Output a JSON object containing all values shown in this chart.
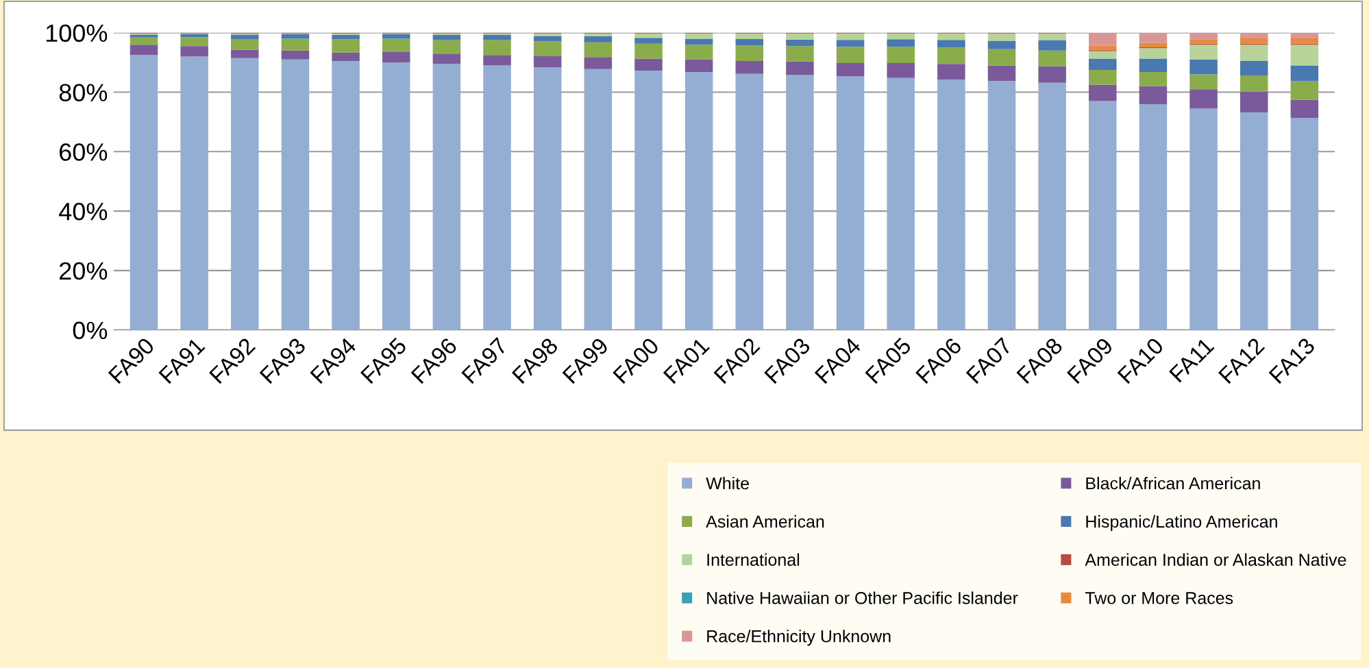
{
  "chart_data": {
    "type": "bar",
    "stacked": true,
    "categories": [
      "FA90",
      "FA91",
      "FA92",
      "FA93",
      "FA94",
      "FA95",
      "FA96",
      "FA97",
      "FA98",
      "FA99",
      "FA00",
      "FA01",
      "FA02",
      "FA03",
      "FA04",
      "FA05",
      "FA06",
      "FA07",
      "FA08",
      "FA09",
      "FA10",
      "FA11",
      "FA12",
      "FA13"
    ],
    "series": [
      {
        "name": "White",
        "color": "#94aed3",
        "values": [
          92.5,
          92,
          91.5,
          91,
          90.5,
          90,
          89.5,
          89,
          88.3,
          87.8,
          87.3,
          86.8,
          86.2,
          85.8,
          85.3,
          84.8,
          84.3,
          83.8,
          83.2,
          77,
          76,
          74.5,
          73.2,
          71.3
        ]
      },
      {
        "name": "Black/African American",
        "color": "#7b5a9b",
        "values": [
          3.5,
          3.5,
          2.8,
          3,
          2.8,
          3.5,
          3.5,
          3.5,
          3.8,
          4,
          4,
          4.2,
          4.3,
          4.5,
          4.5,
          5,
          5.2,
          5.2,
          5.5,
          5.5,
          6,
          6.5,
          7,
          6.2
        ]
      },
      {
        "name": "Asian American",
        "color": "#8aac4a",
        "values": [
          2.4,
          3,
          3.6,
          4,
          4.5,
          4.5,
          4.5,
          5,
          5,
          5,
          5,
          5,
          5.2,
          5.2,
          5.5,
          5.5,
          5.5,
          5.5,
          5.3,
          5,
          4.8,
          5,
          5.3,
          6.2
        ]
      },
      {
        "name": "Hispanic/Latino American",
        "color": "#4a78b0",
        "values": [
          1,
          1,
          1.5,
          1.5,
          1.5,
          1.5,
          1.8,
          1.8,
          1.8,
          2,
          2,
          2,
          2.2,
          2.2,
          2.3,
          2.5,
          2.6,
          2.8,
          3.5,
          3.8,
          4.5,
          5,
          5,
          5.3
        ]
      },
      {
        "name": "International",
        "color": "#b8d39a",
        "values": [
          0.4,
          0.3,
          0.4,
          0.3,
          0.5,
          0.3,
          0.5,
          0.5,
          0.9,
          1,
          1.5,
          1.8,
          1.9,
          2.1,
          2.2,
          2,
          2.2,
          2.5,
          2.3,
          2.5,
          3.5,
          5,
          5.5,
          7
        ]
      },
      {
        "name": "American Indian or Alaskan Native",
        "color": "#b84a46",
        "values": [
          0.2,
          0.2,
          0.2,
          0.2,
          0.2,
          0.2,
          0.2,
          0.2,
          0.2,
          0.2,
          0.2,
          0.2,
          0.2,
          0.2,
          0.2,
          0.2,
          0.2,
          0.2,
          0.2,
          0.3,
          0.3,
          0.3,
          0.3,
          0.3
        ]
      },
      {
        "name": "Native Hawaiian or Other Pacific Islander",
        "color": "#3a9fb8",
        "values": [
          null,
          null,
          null,
          null,
          null,
          null,
          null,
          null,
          null,
          null,
          null,
          null,
          null,
          null,
          null,
          null,
          null,
          null,
          null,
          null,
          null,
          null,
          null,
          null
        ]
      },
      {
        "name": "Two or More Races",
        "color": "#e88a3e",
        "values": [
          0,
          0,
          0,
          0,
          0,
          0,
          0,
          0,
          0,
          0,
          0,
          0,
          0,
          0,
          0,
          0,
          0,
          0,
          0,
          1.5,
          1.5,
          1.5,
          1.8,
          1.8
        ]
      },
      {
        "name": "Race/Ethnicity Unknown",
        "color": "#d99694",
        "values": [
          0,
          0,
          0,
          0,
          0,
          0,
          0,
          0,
          0,
          0,
          0,
          0,
          0,
          0,
          0,
          0,
          0,
          0,
          0,
          4.3,
          3.3,
          2.1,
          1.8,
          1.8
        ]
      }
    ],
    "ylim": [
      0,
      100
    ],
    "yticks": [
      {
        "value": 0,
        "label": "0%"
      },
      {
        "value": 20,
        "label": "20%"
      },
      {
        "value": 40,
        "label": "40%"
      },
      {
        "value": 60,
        "label": "60%"
      },
      {
        "value": 80,
        "label": "80%"
      },
      {
        "value": 100,
        "label": "100%"
      }
    ],
    "grid": "y",
    "legend": "bottom right"
  }
}
